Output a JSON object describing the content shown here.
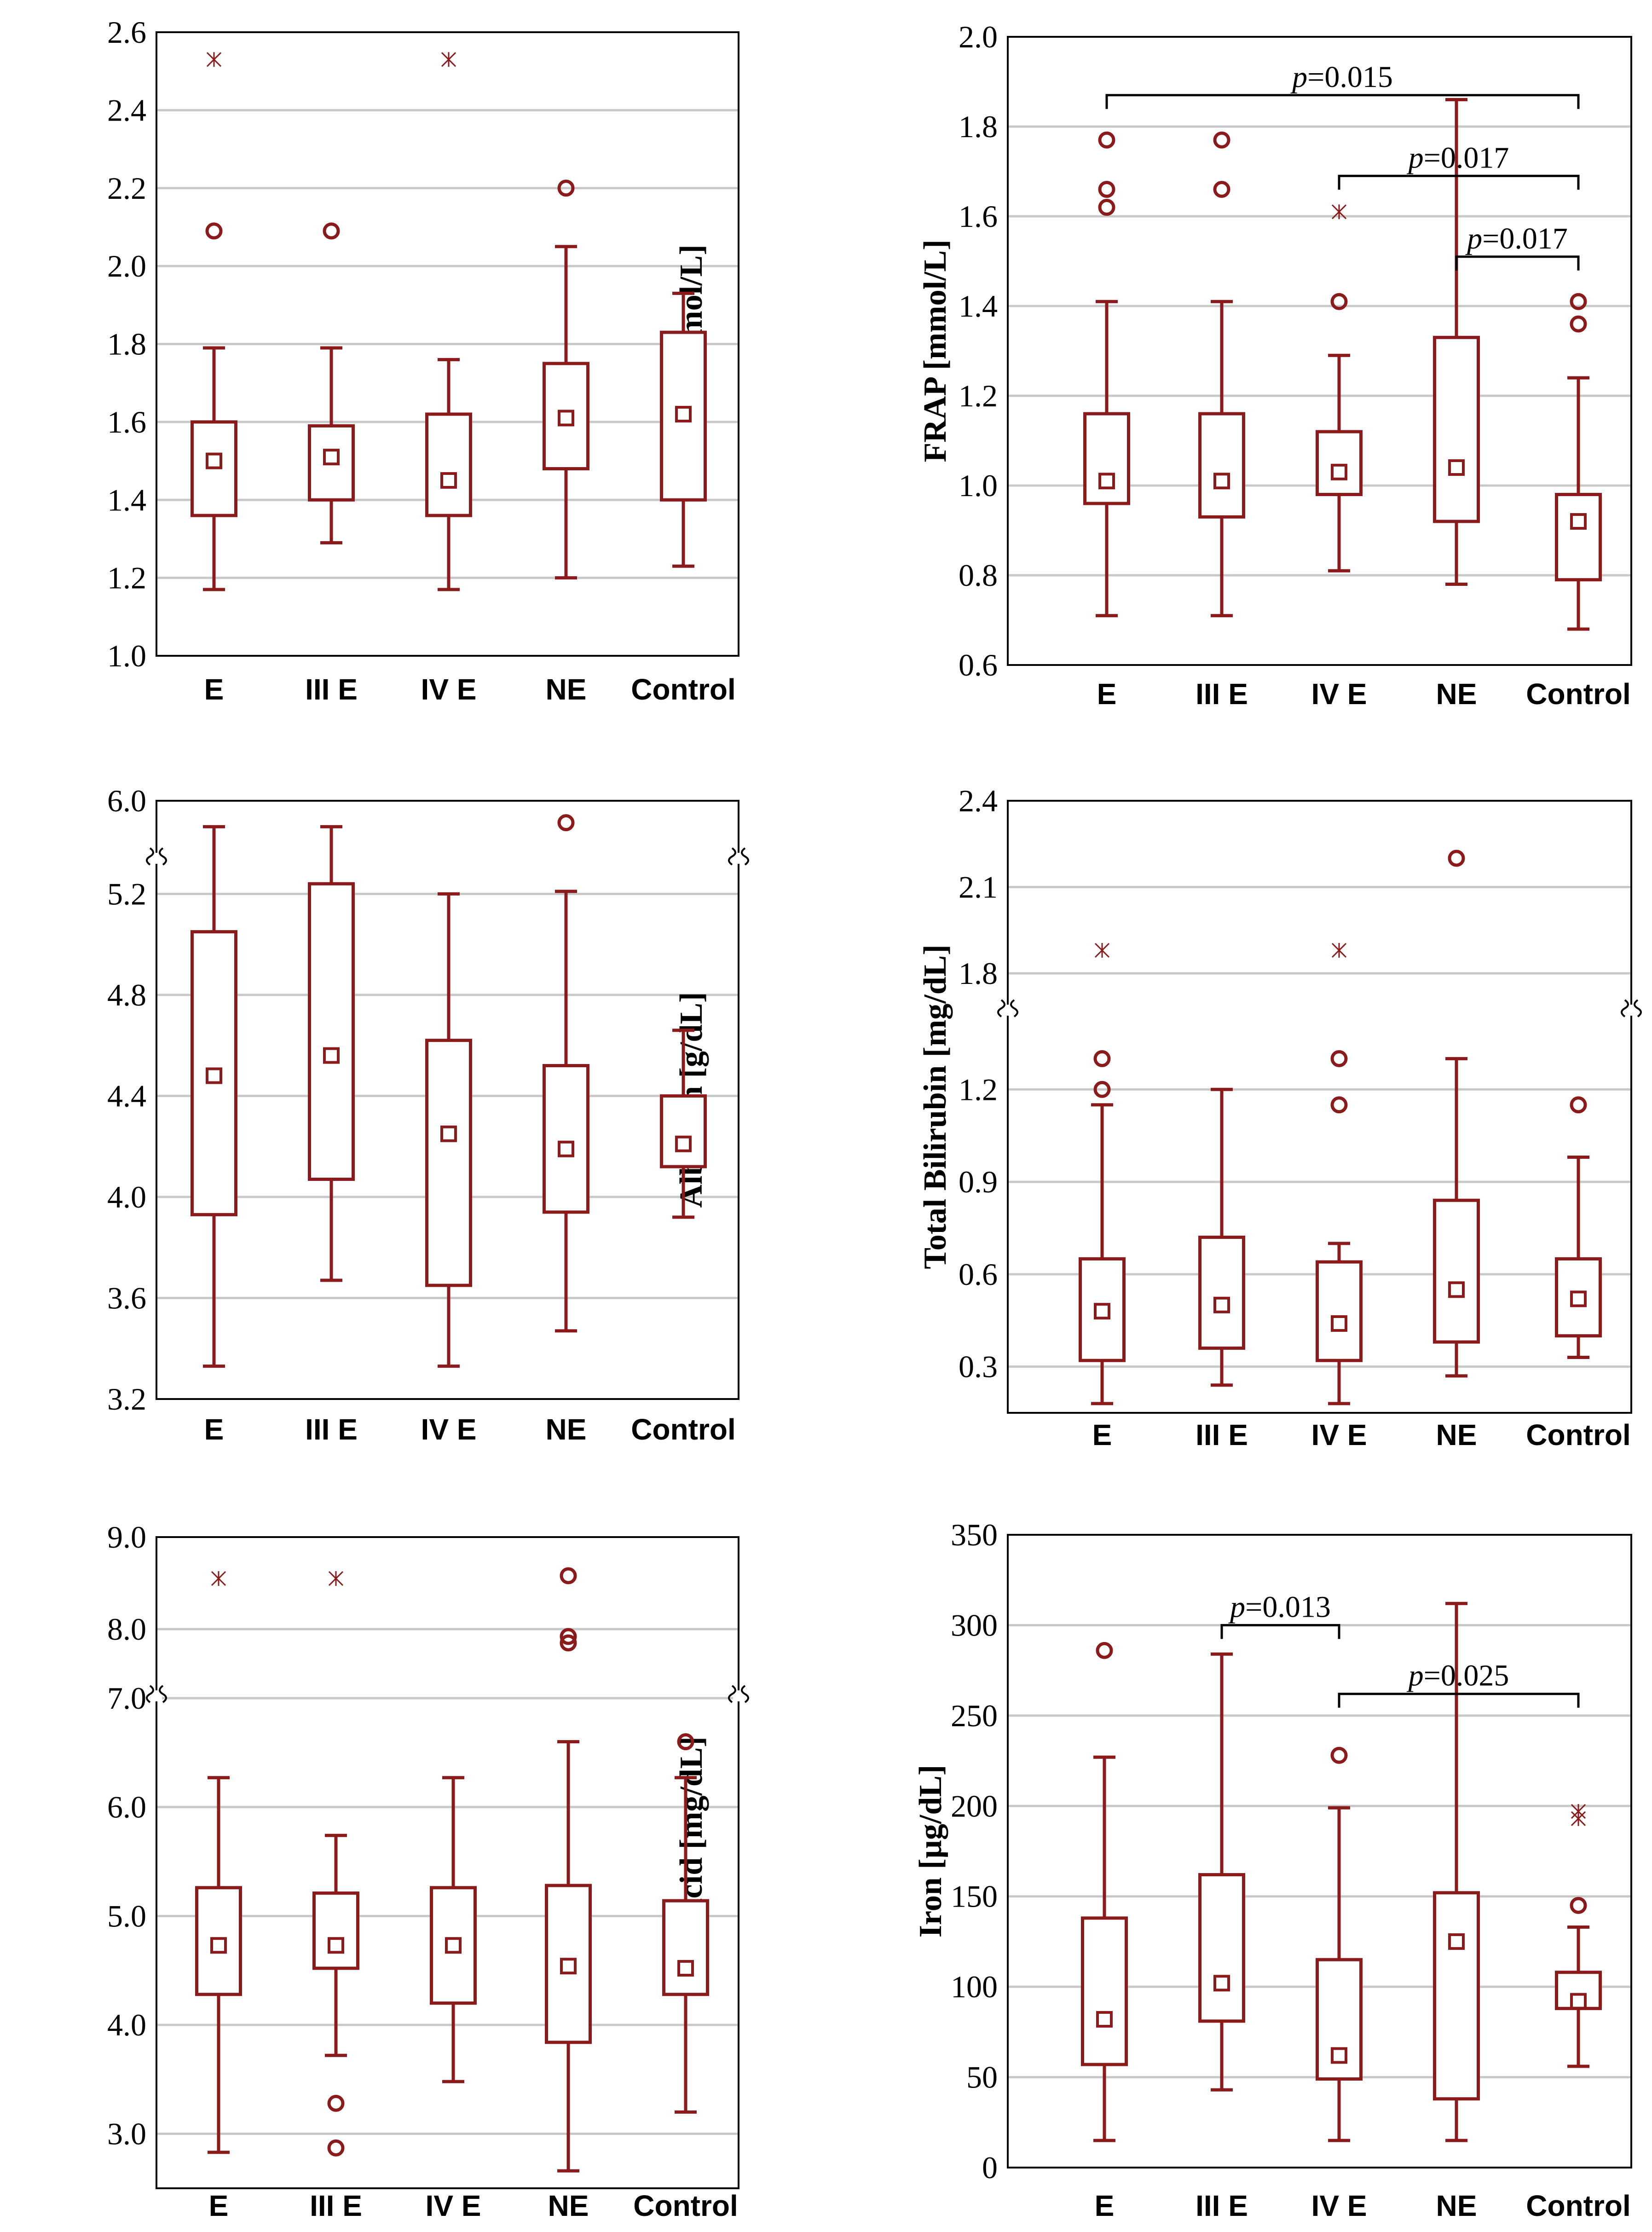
{
  "colors": {
    "box": "#8b1a1a",
    "grid": "#c8c8c8",
    "frame": "#000000",
    "bracket": "#000000"
  },
  "chart_data": [
    {
      "type": "box",
      "categories": [
        "E",
        "III E",
        "IV E",
        "NE",
        "Control"
      ],
      "ylabel": "TAS [mmol/L]",
      "ylim": [
        1.0,
        2.6
      ],
      "yticks": [
        "1.0",
        "1.2",
        "1.4",
        "1.6",
        "1.8",
        "2.0",
        "2.2",
        "2.4",
        "2.6"
      ],
      "boxes": [
        {
          "min": 1.17,
          "q1": 1.36,
          "median": 1.5,
          "q3": 1.6,
          "max": 1.79,
          "outliers": [
            2.09
          ],
          "extremes": [
            2.53
          ]
        },
        {
          "min": 1.29,
          "q1": 1.4,
          "median": 1.51,
          "q3": 1.59,
          "max": 1.79,
          "outliers": [
            2.09
          ],
          "extremes": []
        },
        {
          "min": 1.17,
          "q1": 1.36,
          "median": 1.45,
          "q3": 1.62,
          "max": 1.76,
          "outliers": [],
          "extremes": [
            2.53
          ]
        },
        {
          "min": 1.2,
          "q1": 1.48,
          "median": 1.61,
          "q3": 1.75,
          "max": 2.05,
          "outliers": [
            2.2
          ],
          "extremes": []
        },
        {
          "min": 1.23,
          "q1": 1.4,
          "median": 1.62,
          "q3": 1.83,
          "max": 1.93,
          "outliers": [],
          "extremes": []
        }
      ],
      "brackets": []
    },
    {
      "type": "box",
      "categories": [
        "E",
        "III E",
        "IV E",
        "NE",
        "Control"
      ],
      "ylabel": "FRAP [mmol/L]",
      "ylim": [
        0.6,
        2.0
      ],
      "yticks": [
        "0.6",
        "0.8",
        "1.0",
        "1.2",
        "1.4",
        "1.6",
        "1.8",
        "2.0"
      ],
      "boxes": [
        {
          "min": 0.71,
          "q1": 0.96,
          "median": 1.01,
          "q3": 1.16,
          "max": 1.41,
          "outliers": [
            1.62,
            1.66,
            1.77
          ],
          "extremes": []
        },
        {
          "min": 0.71,
          "q1": 0.93,
          "median": 1.01,
          "q3": 1.16,
          "max": 1.41,
          "outliers": [
            1.66,
            1.77
          ],
          "extremes": []
        },
        {
          "min": 0.81,
          "q1": 0.98,
          "median": 1.03,
          "q3": 1.12,
          "max": 1.29,
          "outliers": [
            1.41
          ],
          "extremes": [
            1.61
          ]
        },
        {
          "min": 0.78,
          "q1": 0.92,
          "median": 1.04,
          "q3": 1.33,
          "max": 1.86,
          "outliers": [],
          "extremes": []
        },
        {
          "min": 0.68,
          "q1": 0.79,
          "median": 0.92,
          "q3": 0.98,
          "max": 1.24,
          "outliers": [
            1.36,
            1.41
          ],
          "extremes": []
        }
      ],
      "brackets": [
        {
          "from": 0,
          "to": 4,
          "y": 1.87,
          "label_italic": "p",
          "label_rest": "=0.015"
        },
        {
          "from": 2,
          "to": 4,
          "y": 1.69,
          "label_italic": "p",
          "label_rest": "=0.017"
        },
        {
          "from": 3,
          "to": 4,
          "y": 1.51,
          "label_italic": "p",
          "label_rest": "=0.017"
        }
      ]
    },
    {
      "type": "box",
      "categories": [
        "E",
        "III E",
        "IV E",
        "NE",
        "Control"
      ],
      "ylabel": "Albumin [g/dL]",
      "ylim": [
        3.2,
        6.0
      ],
      "yticks": [
        "3.2",
        "3.6",
        "4.0",
        "4.4",
        "4.8",
        "5.2",
        "6.0"
      ],
      "boxes": [
        {
          "min": 3.33,
          "q1": 3.93,
          "median": 4.48,
          "q3": 5.05,
          "max": 5.87,
          "outliers": [],
          "extremes": []
        },
        {
          "min": 3.67,
          "q1": 4.07,
          "median": 4.56,
          "q3": 5.24,
          "max": 5.87,
          "outliers": [],
          "extremes": []
        },
        {
          "min": 3.33,
          "q1": 3.65,
          "median": 4.25,
          "q3": 4.62,
          "max": 5.2,
          "outliers": [],
          "extremes": []
        },
        {
          "min": 3.47,
          "q1": 3.94,
          "median": 4.19,
          "q3": 4.52,
          "max": 5.21,
          "outliers": [
            5.89
          ],
          "extremes": []
        },
        {
          "min": 3.92,
          "q1": 4.12,
          "median": 4.21,
          "q3": 4.4,
          "max": 4.66,
          "outliers": [],
          "extremes": []
        }
      ],
      "brackets": []
    },
    {
      "type": "box",
      "categories": [
        "E",
        "III E",
        "IV E",
        "NE",
        "Control"
      ],
      "ylabel": "Total Bilirubin [mg/dL]",
      "ylim": [
        0.15,
        2.4
      ],
      "yticks": [
        "0.3",
        "0.6",
        "0.9",
        "1.2",
        "1.8",
        "2.1",
        "2.4"
      ],
      "boxes": [
        {
          "min": 0.18,
          "q1": 0.32,
          "median": 0.48,
          "q3": 0.65,
          "max": 1.15,
          "outliers": [
            1.2,
            1.3
          ],
          "extremes": [
            1.88
          ]
        },
        {
          "min": 0.24,
          "q1": 0.36,
          "median": 0.5,
          "q3": 0.72,
          "max": 1.2,
          "outliers": [],
          "extremes": []
        },
        {
          "min": 0.18,
          "q1": 0.32,
          "median": 0.44,
          "q3": 0.64,
          "max": 0.7,
          "outliers": [
            1.15,
            1.3
          ],
          "extremes": [
            1.88
          ]
        },
        {
          "min": 0.27,
          "q1": 0.38,
          "median": 0.55,
          "q3": 0.84,
          "max": 1.3,
          "outliers": [
            2.2
          ],
          "extremes": []
        },
        {
          "min": 0.33,
          "q1": 0.4,
          "median": 0.52,
          "q3": 0.65,
          "max": 0.98,
          "outliers": [
            1.15
          ],
          "extremes": []
        }
      ],
      "brackets": []
    },
    {
      "type": "box",
      "categories": [
        "E",
        "III E",
        "IV E",
        "NE",
        "Control"
      ],
      "ylabel": "Uric Acid [mg/dL]",
      "ylim": [
        2.5,
        9.0
      ],
      "yticks": [
        "3.0",
        "4.0",
        "5.0",
        "6.0",
        "7.0",
        "8.0",
        "9.0"
      ],
      "boxes": [
        {
          "min": 2.83,
          "q1": 4.28,
          "median": 4.73,
          "q3": 5.26,
          "max": 6.27,
          "outliers": [],
          "extremes": [
            8.55
          ]
        },
        {
          "min": 3.72,
          "q1": 4.52,
          "median": 4.73,
          "q3": 5.21,
          "max": 5.74,
          "outliers": [
            2.87,
            3.28
          ],
          "extremes": [
            8.55
          ]
        },
        {
          "min": 3.48,
          "q1": 4.2,
          "median": 4.73,
          "q3": 5.26,
          "max": 6.27,
          "outliers": [],
          "extremes": []
        },
        {
          "min": 2.66,
          "q1": 3.84,
          "median": 4.54,
          "q3": 5.28,
          "max": 6.6,
          "outliers": [
            7.85,
            7.92,
            8.58
          ],
          "extremes": []
        },
        {
          "min": 3.2,
          "q1": 4.28,
          "median": 4.52,
          "q3": 5.14,
          "max": 6.27,
          "outliers": [
            6.6
          ],
          "extremes": []
        }
      ],
      "brackets": []
    },
    {
      "type": "box",
      "categories": [
        "E",
        "III E",
        "IV E",
        "NE",
        "Control"
      ],
      "ylabel": "Iron [µg/dL]",
      "ylim": [
        0,
        350
      ],
      "yticks": [
        "0",
        "50",
        "100",
        "150",
        "200",
        "250",
        "300",
        "350"
      ],
      "boxes": [
        {
          "min": 15,
          "q1": 57,
          "median": 82,
          "q3": 138,
          "max": 227,
          "outliers": [
            286
          ],
          "extremes": []
        },
        {
          "min": 43,
          "q1": 81,
          "median": 102,
          "q3": 162,
          "max": 284,
          "outliers": [],
          "extremes": []
        },
        {
          "min": 15,
          "q1": 49,
          "median": 62,
          "q3": 115,
          "max": 199,
          "outliers": [
            228
          ],
          "extremes": []
        },
        {
          "min": 15,
          "q1": 38,
          "median": 125,
          "q3": 152,
          "max": 312,
          "outliers": [],
          "extremes": []
        },
        {
          "min": 56,
          "q1": 88,
          "median": 92,
          "q3": 108,
          "max": 133,
          "outliers": [
            145
          ],
          "extremes": [
            193,
            197
          ]
        }
      ],
      "brackets": [
        {
          "from": 1,
          "to": 2,
          "y": 300,
          "label_italic": "p",
          "label_rest": "=0.013"
        },
        {
          "from": 2,
          "to": 4,
          "y": 262,
          "label_italic": "p",
          "label_rest": "=0.025"
        }
      ]
    }
  ]
}
